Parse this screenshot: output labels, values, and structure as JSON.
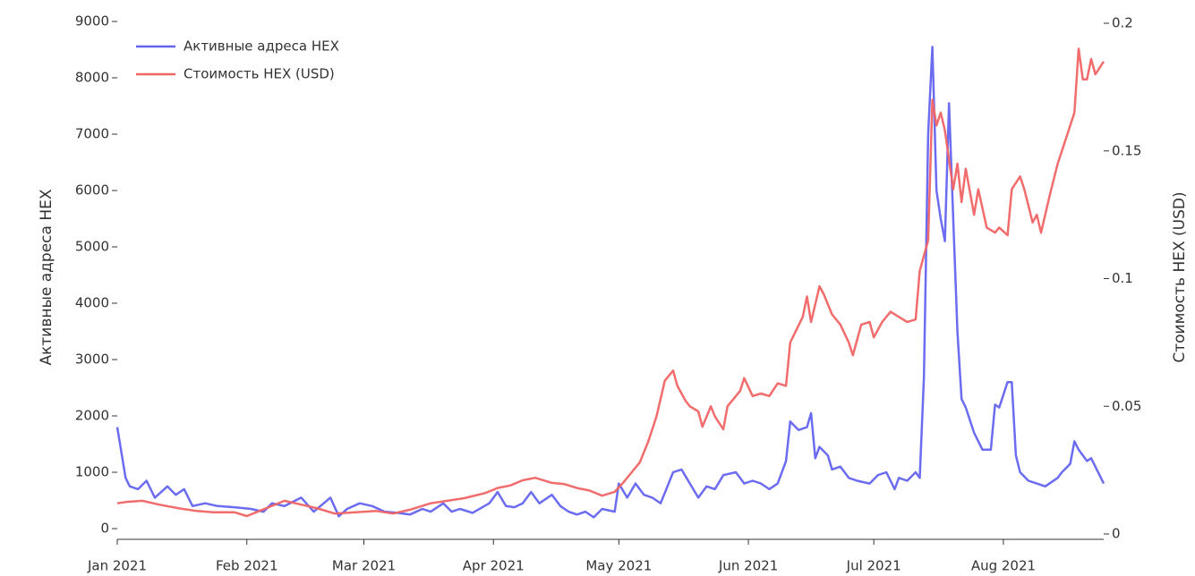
{
  "chart_data": {
    "type": "line",
    "ylabel": "Активные адреса HEX",
    "y2label": "Стоимость HEX (USD)",
    "xlim": [
      0,
      236
    ],
    "xticks": [
      {
        "value": 0,
        "label": "Jan 2021"
      },
      {
        "value": 31,
        "label": "Feb 2021"
      },
      {
        "value": 59,
        "label": "Mar 2021"
      },
      {
        "value": 90,
        "label": "Apr 2021"
      },
      {
        "value": 120,
        "label": "May 2021"
      },
      {
        "value": 151,
        "label": "Jun 2021"
      },
      {
        "value": 181,
        "label": "Jul 2021"
      },
      {
        "value": 212,
        "label": "Aug 2021"
      }
    ],
    "ylim": [
      -190,
      9000
    ],
    "yticks": [
      0,
      1000,
      2000,
      3000,
      4000,
      5000,
      6000,
      7000,
      8000,
      9000
    ],
    "y2lim": [
      -0.0021,
      0.2007
    ],
    "y2ticks": [
      0,
      0.05,
      0.1,
      0.15,
      0.2
    ],
    "legend": "upper left",
    "series": [
      {
        "name": "Активные адреса HEX",
        "color": "#6464f0",
        "x": [
          0,
          2,
          3,
          5,
          7,
          9,
          12,
          14,
          16,
          18,
          21,
          24,
          28,
          32,
          35,
          37,
          40,
          44,
          47,
          51,
          53,
          55,
          58,
          61,
          64,
          67,
          70,
          73,
          75,
          78,
          80,
          82,
          85,
          89,
          91,
          93,
          95,
          97,
          99,
          101,
          104,
          106,
          108,
          110,
          112,
          114,
          116,
          119,
          120,
          122,
          124,
          126,
          128,
          130,
          133,
          135,
          137,
          139,
          141,
          143,
          145,
          148,
          150,
          152,
          154,
          156,
          158,
          160,
          161,
          163,
          165,
          166,
          167,
          168,
          170,
          171,
          173,
          175,
          177,
          180,
          182,
          184,
          186,
          187,
          189,
          191,
          192,
          193,
          194,
          195,
          196,
          197,
          198,
          199,
          200,
          201,
          202,
          203,
          205,
          207,
          209,
          210,
          211,
          213,
          214,
          215,
          216,
          218,
          220,
          222,
          225,
          226,
          228,
          229,
          230,
          232,
          233,
          236
        ],
        "values": [
          1800,
          900,
          750,
          700,
          850,
          550,
          750,
          600,
          700,
          400,
          450,
          400,
          380,
          350,
          300,
          450,
          400,
          550,
          300,
          550,
          220,
          350,
          450,
          400,
          300,
          280,
          250,
          350,
          300,
          450,
          300,
          350,
          280,
          450,
          650,
          400,
          380,
          450,
          650,
          450,
          600,
          400,
          300,
          250,
          300,
          200,
          350,
          300,
          800,
          550,
          800,
          600,
          550,
          450,
          1000,
          1050,
          800,
          550,
          750,
          700,
          950,
          1000,
          800,
          850,
          800,
          700,
          800,
          1200,
          1900,
          1750,
          1800,
          2050,
          1250,
          1450,
          1300,
          1050,
          1100,
          900,
          850,
          800,
          950,
          1000,
          700,
          900,
          850,
          1000,
          900,
          2700,
          7000,
          8550,
          6000,
          5500,
          5100,
          7550,
          5500,
          3500,
          2300,
          2150,
          1700,
          1400,
          1400,
          2200,
          2150,
          2600,
          2600,
          1300,
          1000,
          850,
          800,
          750,
          900,
          1000,
          1150,
          1550,
          1400,
          1200,
          1250,
          800
        ]
      },
      {
        "name": "Стоимость HEX (USD)",
        "color": "#f06464",
        "axis": "y2",
        "x": [
          0,
          2,
          6,
          10,
          15,
          19,
          23,
          28,
          31,
          34,
          37,
          40,
          44,
          48,
          52,
          57,
          62,
          66,
          70,
          75,
          79,
          83,
          88,
          91,
          94,
          97,
          100,
          104,
          107,
          110,
          113,
          116,
          119,
          121,
          123,
          125,
          127,
          129,
          131,
          133,
          134,
          136,
          137,
          139,
          140,
          142,
          143,
          145,
          146,
          149,
          150,
          152,
          154,
          156,
          158,
          160,
          161,
          164,
          165,
          166,
          168,
          169,
          171,
          173,
          175,
          176,
          178,
          180,
          181,
          183,
          185,
          187,
          189,
          191,
          192,
          194,
          195,
          196,
          197,
          198,
          200,
          201,
          202,
          203,
          205,
          206,
          208,
          210,
          211,
          213,
          214,
          216,
          217,
          219,
          220,
          221,
          223,
          225,
          227,
          229,
          230,
          231,
          232,
          233,
          234,
          236
        ],
        "values": [
          0.012,
          0.0125,
          0.013,
          0.0115,
          0.01,
          0.009,
          0.0085,
          0.0085,
          0.007,
          0.009,
          0.011,
          0.013,
          0.0115,
          0.01,
          0.008,
          0.0085,
          0.009,
          0.008,
          0.0095,
          0.012,
          0.013,
          0.014,
          0.016,
          0.018,
          0.019,
          0.021,
          0.022,
          0.02,
          0.0195,
          0.018,
          0.017,
          0.015,
          0.0165,
          0.02,
          0.024,
          0.028,
          0.036,
          0.046,
          0.06,
          0.064,
          0.058,
          0.052,
          0.05,
          0.048,
          0.042,
          0.05,
          0.046,
          0.041,
          0.05,
          0.056,
          0.061,
          0.054,
          0.055,
          0.054,
          0.059,
          0.058,
          0.075,
          0.085,
          0.093,
          0.083,
          0.097,
          0.094,
          0.086,
          0.082,
          0.075,
          0.07,
          0.082,
          0.083,
          0.077,
          0.083,
          0.087,
          0.085,
          0.083,
          0.084,
          0.103,
          0.115,
          0.17,
          0.16,
          0.165,
          0.158,
          0.135,
          0.145,
          0.13,
          0.143,
          0.125,
          0.135,
          0.12,
          0.118,
          0.12,
          0.117,
          0.135,
          0.14,
          0.135,
          0.122,
          0.125,
          0.118,
          0.132,
          0.145,
          0.155,
          0.165,
          0.19,
          0.178,
          0.178,
          0.186,
          0.18,
          0.185
        ]
      }
    ]
  }
}
